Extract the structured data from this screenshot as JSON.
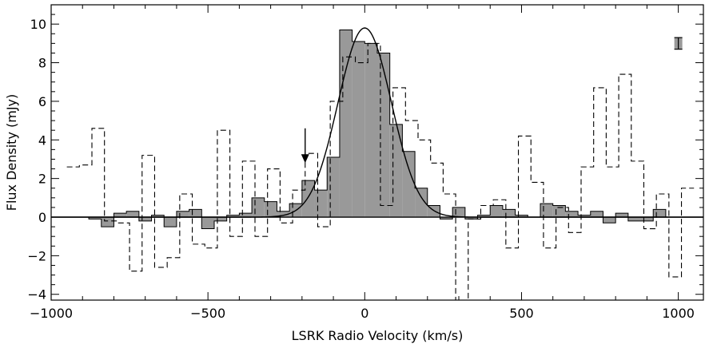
{
  "chart_data": {
    "type": "bar",
    "title": "",
    "xlabel": "LSRK Radio Velocity (km/s)",
    "ylabel": "Flux Density (mJy)",
    "xlim": [
      -1000,
      1080
    ],
    "ylim": [
      -4.3,
      11.0
    ],
    "x_ticks": [
      -1000,
      -500,
      0,
      500,
      1000
    ],
    "x_tick_labels": [
      "−1000",
      "−500",
      "0",
      "500",
      "1000"
    ],
    "y_ticks": [
      -4,
      -2,
      0,
      2,
      4,
      6,
      8,
      10
    ],
    "y_tick_labels": [
      "−4",
      "−2",
      "0",
      "2",
      "4",
      "6",
      "8",
      "10"
    ],
    "grid": false,
    "bin_width_kms": 40,
    "series": [
      {
        "style": "filled-histogram",
        "color": "#999999",
        "bins": [
          {
            "x": -860,
            "y": -0.1
          },
          {
            "x": -820,
            "y": -0.5
          },
          {
            "x": -780,
            "y": 0.2
          },
          {
            "x": -740,
            "y": 0.3
          },
          {
            "x": -700,
            "y": -0.2
          },
          {
            "x": -660,
            "y": 0.1
          },
          {
            "x": -620,
            "y": -0.5
          },
          {
            "x": -580,
            "y": 0.3
          },
          {
            "x": -540,
            "y": 0.4
          },
          {
            "x": -500,
            "y": -0.6
          },
          {
            "x": -460,
            "y": -0.2
          },
          {
            "x": -420,
            "y": 0.1
          },
          {
            "x": -380,
            "y": 0.2
          },
          {
            "x": -340,
            "y": 1.0
          },
          {
            "x": -300,
            "y": 0.8
          },
          {
            "x": -260,
            "y": 0.3
          },
          {
            "x": -220,
            "y": 0.7
          },
          {
            "x": -180,
            "y": 1.9
          },
          {
            "x": -140,
            "y": 1.4
          },
          {
            "x": -100,
            "y": 3.1
          },
          {
            "x": -60,
            "y": 9.7
          },
          {
            "x": -20,
            "y": 9.1
          },
          {
            "x": 20,
            "y": 9.0
          },
          {
            "x": 60,
            "y": 8.5
          },
          {
            "x": 100,
            "y": 4.8
          },
          {
            "x": 140,
            "y": 3.4
          },
          {
            "x": 180,
            "y": 1.5
          },
          {
            "x": 220,
            "y": 0.6
          },
          {
            "x": 260,
            "y": -0.1
          },
          {
            "x": 300,
            "y": 0.5
          },
          {
            "x": 340,
            "y": -0.1
          },
          {
            "x": 380,
            "y": 0.1
          },
          {
            "x": 420,
            "y": 0.6
          },
          {
            "x": 460,
            "y": 0.4
          },
          {
            "x": 500,
            "y": 0.1
          },
          {
            "x": 540,
            "y": 0.0
          },
          {
            "x": 580,
            "y": 0.7
          },
          {
            "x": 620,
            "y": 0.6
          },
          {
            "x": 660,
            "y": 0.3
          },
          {
            "x": 700,
            "y": 0.1
          },
          {
            "x": 740,
            "y": 0.3
          },
          {
            "x": 780,
            "y": -0.3
          },
          {
            "x": 820,
            "y": 0.2
          },
          {
            "x": 860,
            "y": -0.2
          },
          {
            "x": 900,
            "y": -0.2
          },
          {
            "x": 940,
            "y": 0.4
          },
          {
            "x": 980,
            "y": 0.0
          }
        ]
      },
      {
        "style": "dashed-histogram",
        "color": "#000000",
        "bins": [
          {
            "x": -930,
            "y": 2.6
          },
          {
            "x": -890,
            "y": 2.7
          },
          {
            "x": -850,
            "y": 4.6
          },
          {
            "x": -810,
            "y": -0.2
          },
          {
            "x": -770,
            "y": -0.3
          },
          {
            "x": -730,
            "y": -2.8
          },
          {
            "x": -690,
            "y": 3.2
          },
          {
            "x": -650,
            "y": -2.6
          },
          {
            "x": -610,
            "y": -2.1
          },
          {
            "x": -570,
            "y": 1.2
          },
          {
            "x": -530,
            "y": -1.4
          },
          {
            "x": -490,
            "y": -1.6
          },
          {
            "x": -450,
            "y": 4.5
          },
          {
            "x": -410,
            "y": -1.0
          },
          {
            "x": -370,
            "y": 2.9
          },
          {
            "x": -330,
            "y": -1.0
          },
          {
            "x": -290,
            "y": 2.5
          },
          {
            "x": -250,
            "y": -0.3
          },
          {
            "x": -210,
            "y": 1.4
          },
          {
            "x": -170,
            "y": 3.3
          },
          {
            "x": -130,
            "y": -0.5
          },
          {
            "x": -90,
            "y": 6.0
          },
          {
            "x": -50,
            "y": 8.3
          },
          {
            "x": -10,
            "y": 8.0
          },
          {
            "x": 30,
            "y": 9.0
          },
          {
            "x": 70,
            "y": 0.6
          },
          {
            "x": 110,
            "y": 6.7
          },
          {
            "x": 150,
            "y": 5.0
          },
          {
            "x": 190,
            "y": 4.0
          },
          {
            "x": 230,
            "y": 2.8
          },
          {
            "x": 270,
            "y": 1.2
          },
          {
            "x": 310,
            "y": -4.3
          },
          {
            "x": 350,
            "y": -0.1
          },
          {
            "x": 390,
            "y": 0.6
          },
          {
            "x": 430,
            "y": 0.9
          },
          {
            "x": 470,
            "y": -1.6
          },
          {
            "x": 510,
            "y": 4.2
          },
          {
            "x": 550,
            "y": 1.8
          },
          {
            "x": 590,
            "y": -1.6
          },
          {
            "x": 630,
            "y": 0.5
          },
          {
            "x": 670,
            "y": -0.8
          },
          {
            "x": 710,
            "y": 2.6
          },
          {
            "x": 750,
            "y": 6.7
          },
          {
            "x": 790,
            "y": 2.6
          },
          {
            "x": 830,
            "y": 7.4
          },
          {
            "x": 870,
            "y": 2.9
          },
          {
            "x": 910,
            "y": -0.6
          },
          {
            "x": 950,
            "y": 1.2
          },
          {
            "x": 990,
            "y": -3.1
          },
          {
            "x": 1030,
            "y": 1.5
          }
        ]
      },
      {
        "style": "gaussian-fit",
        "color": "#000000",
        "peak": 9.8,
        "center": 0,
        "sigma": 85
      }
    ],
    "annotations": [
      {
        "type": "arrow-down",
        "x": -190,
        "y_top": 4.6,
        "y_tip": 2.8
      },
      {
        "type": "error-bar",
        "x": 1000,
        "y": 9.0,
        "err": 0.3
      }
    ]
  }
}
